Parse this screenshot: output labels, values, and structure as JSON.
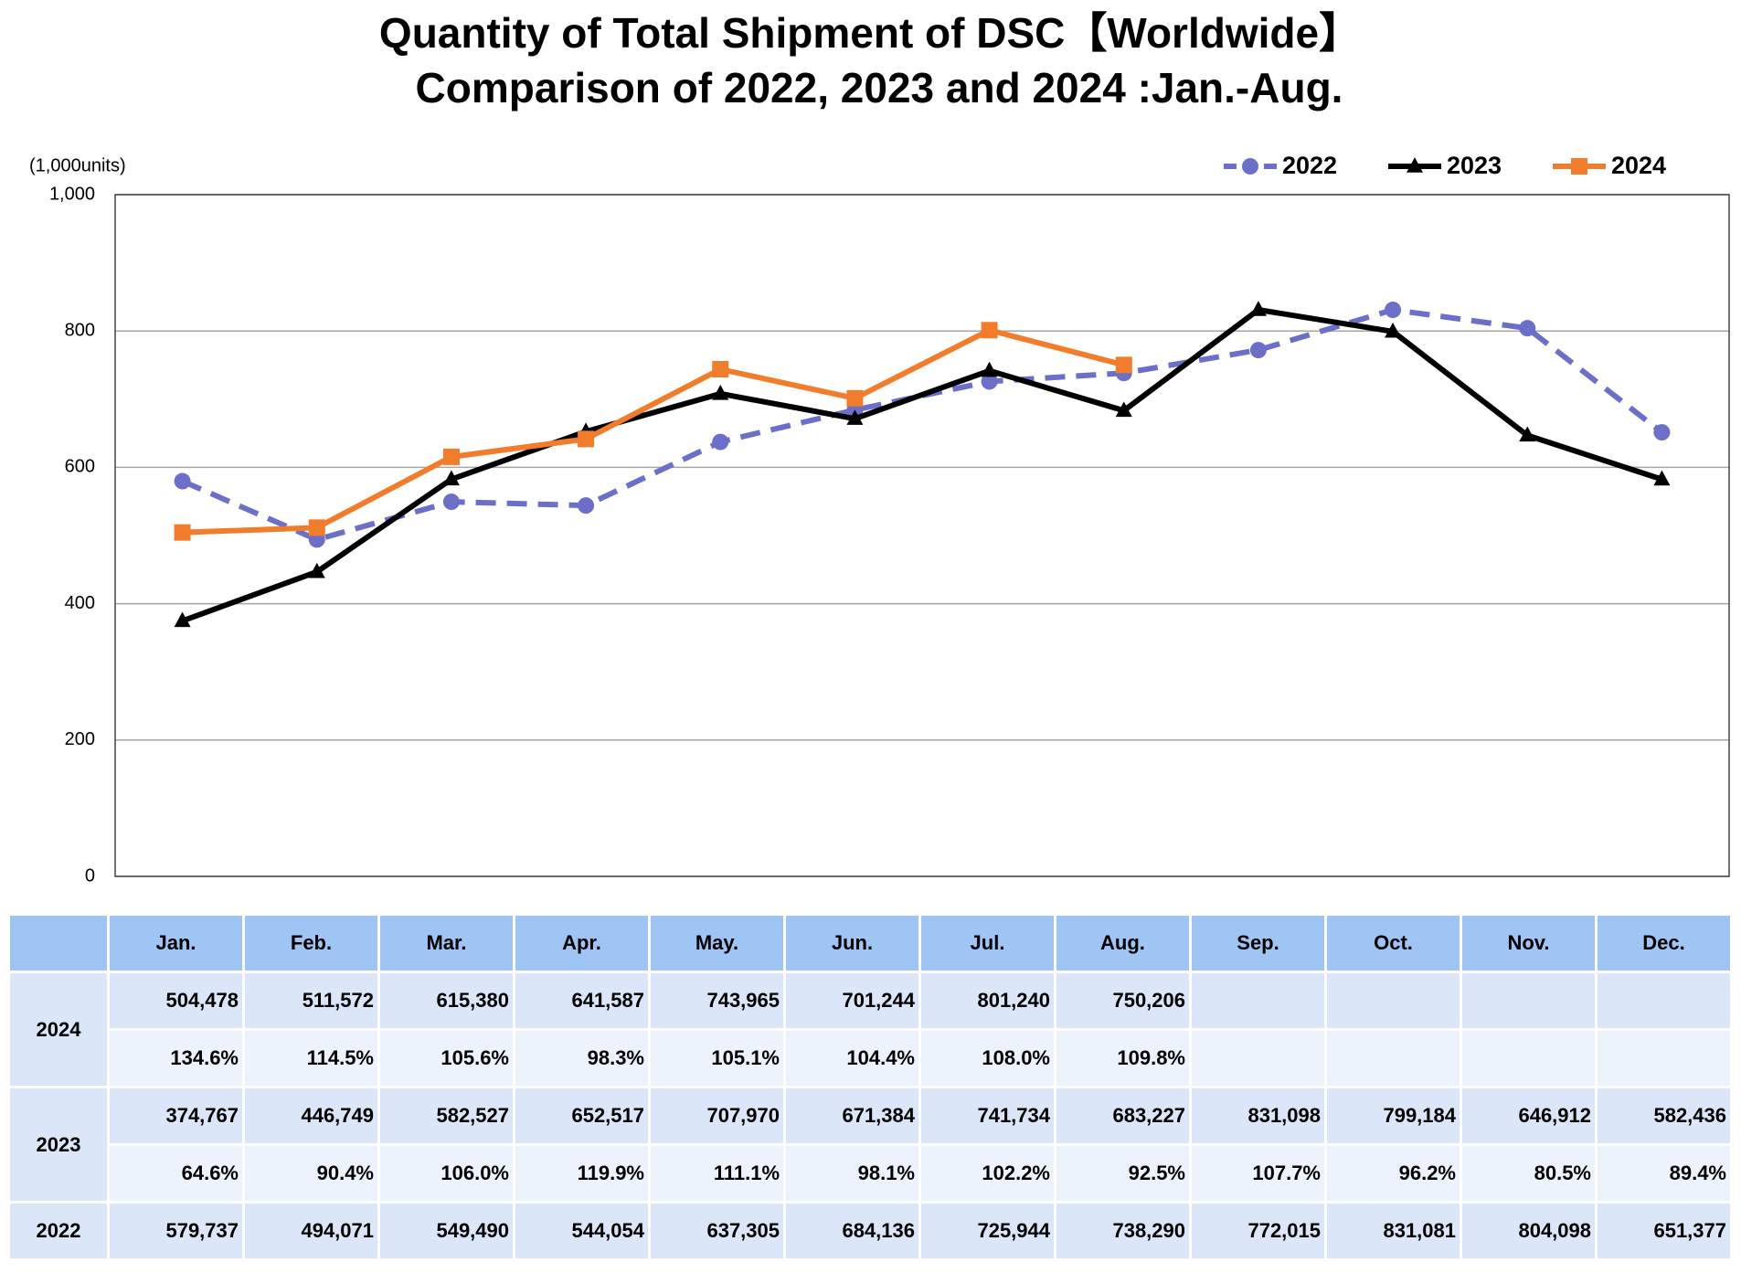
{
  "chart_data": {
    "type": "line",
    "title": "Quantity of Total Shipment of DSC【Worldwide】",
    "subtitle": "Comparison of 2022, 2023 and 2024 :Jan.-Aug.",
    "y_axis_label": "(1,000units)",
    "categories": [
      "Jan.",
      "Feb.",
      "Mar.",
      "Apr.",
      "May.",
      "Jun.",
      "Jul.",
      "Aug.",
      "Sep.",
      "Oct.",
      "Nov.",
      "Dec."
    ],
    "ylim": [
      0,
      1000
    ],
    "yticks": [
      0,
      200,
      400,
      600,
      800,
      {
        "value": 1000,
        "label": "1,000"
      }
    ],
    "grid": true,
    "legend": "top-right",
    "series": [
      {
        "name": "2022",
        "color": "#6b6fc8",
        "dash": true,
        "marker": "circle",
        "values": [
          579.737,
          494.071,
          549.49,
          544.054,
          637.305,
          684.136,
          725.944,
          738.29,
          772.015,
          831.081,
          804.098,
          651.377
        ],
        "value_labels": [
          "579,737",
          "494,071",
          "549,490",
          "544,054",
          "637,305",
          "684,136",
          "725,944",
          "738,290",
          "772,015",
          "831,081",
          "804,098",
          "651,377"
        ]
      },
      {
        "name": "2023",
        "color": "#000000",
        "dash": false,
        "marker": "triangle",
        "values": [
          374.767,
          446.749,
          582.527,
          652.517,
          707.97,
          671.384,
          741.734,
          683.227,
          831.098,
          799.184,
          646.912,
          582.436
        ],
        "value_labels": [
          "374,767",
          "446,749",
          "582,527",
          "652,517",
          "707,970",
          "671,384",
          "741,734",
          "683,227",
          "831,098",
          "799,184",
          "646,912",
          "582,436"
        ],
        "ratio_labels": [
          "64.6%",
          "90.4%",
          "106.0%",
          "119.9%",
          "111.1%",
          "98.1%",
          "102.2%",
          "92.5%",
          "107.7%",
          "96.2%",
          "80.5%",
          "89.4%"
        ]
      },
      {
        "name": "2024",
        "color": "#f07c2c",
        "dash": false,
        "marker": "square",
        "values": [
          504.478,
          511.572,
          615.38,
          641.587,
          743.965,
          701.244,
          801.24,
          750.206,
          null,
          null,
          null,
          null
        ],
        "value_labels": [
          "504,478",
          "511,572",
          "615,380",
          "641,587",
          "743,965",
          "701,244",
          "801,240",
          "750,206",
          null,
          null,
          null,
          null
        ],
        "ratio_labels": [
          "134.6%",
          "114.5%",
          "105.6%",
          "98.3%",
          "105.1%",
          "104.4%",
          "108.0%",
          "109.8%",
          null,
          null,
          null,
          null
        ]
      }
    ]
  }
}
